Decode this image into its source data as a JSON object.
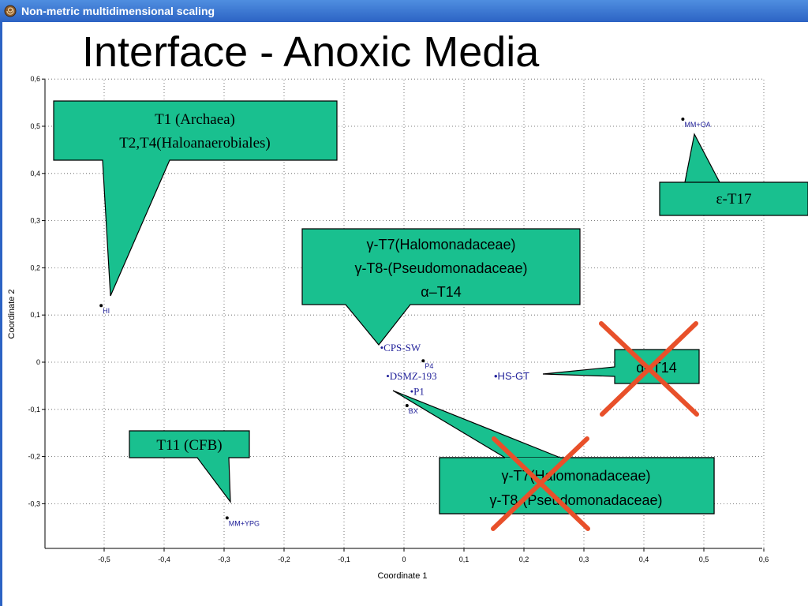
{
  "window": {
    "title": "Non-metric multidimensional scaling",
    "icon": "ammonite-icon"
  },
  "slide": {
    "title": "Interface - Anoxic Media"
  },
  "chart_data": {
    "type": "scatter",
    "xlabel": "Coordinate 1",
    "ylabel": "Coordinate 2",
    "xlim": [
      -0.6,
      0.6
    ],
    "ylim": [
      -0.4,
      0.6
    ],
    "grid": true,
    "x_ticks": [
      "-0,5",
      "-0,4",
      "-0,3",
      "-0,2",
      "-0,1",
      "0",
      "0,1",
      "0,2",
      "0,3",
      "0,4",
      "0,5",
      "0,6"
    ],
    "x_tick_values": [
      -0.5,
      -0.4,
      -0.3,
      -0.2,
      -0.1,
      0,
      0.1,
      0.2,
      0.3,
      0.4,
      0.5,
      0.6
    ],
    "y_ticks": [
      "-0,3",
      "-0,2",
      "-0,1",
      "0",
      "0,1",
      "0,2",
      "0,3",
      "0,4",
      "0,5",
      "0,6"
    ],
    "y_tick_values": [
      -0.3,
      -0.2,
      -0.1,
      0,
      0.1,
      0.2,
      0.3,
      0.4,
      0.5,
      0.6
    ],
    "points": [
      {
        "label": "HI",
        "x": -0.505,
        "y": 0.12
      },
      {
        "label": "MM+OA",
        "x": 0.465,
        "y": 0.515
      },
      {
        "label": "MM+YPG",
        "x": -0.295,
        "y": -0.33
      },
      {
        "label": "P4",
        "x": 0.032,
        "y": 0.003
      },
      {
        "label": "BX",
        "x": 0.005,
        "y": -0.092
      }
    ],
    "overlay_labels": [
      {
        "text": "•CPS-SW",
        "x": -0.04,
        "y": 0.03,
        "font": "serif"
      },
      {
        "text": "•DSMZ-193",
        "x": -0.03,
        "y": -0.03,
        "font": "serif"
      },
      {
        "text": "•P1",
        "x": 0.01,
        "y": -0.063,
        "font": "serif"
      },
      {
        "text": "•HS-GT",
        "x": 0.15,
        "y": -0.03,
        "font": "sans"
      }
    ]
  },
  "callouts": [
    {
      "lines": [
        "T1 (Archaea)",
        "T2,T4(Haloanaerobiales)"
      ],
      "font": "serif"
    },
    {
      "lines": [
        "ε-T17"
      ],
      "font": "serif"
    },
    {
      "lines": [
        "γ-T7(Halomonadaceae)",
        "γ-T8-(Pseudomonadaceae)",
        "α–T14"
      ],
      "font": "sans"
    },
    {
      "lines": [
        "α–T14"
      ],
      "font": "sans"
    },
    {
      "lines": [
        "T11 (CFB)"
      ],
      "font": "serif"
    },
    {
      "lines": [
        "γ-T7(Halomonadaceae)",
        "γ-T8-(Pseudomonadaceae)"
      ],
      "font": "sans"
    }
  ],
  "colors": {
    "callout": "#19c08f",
    "cross": "#e8502a",
    "point_label": "#22229a",
    "titlebar": "#2c63c4"
  }
}
